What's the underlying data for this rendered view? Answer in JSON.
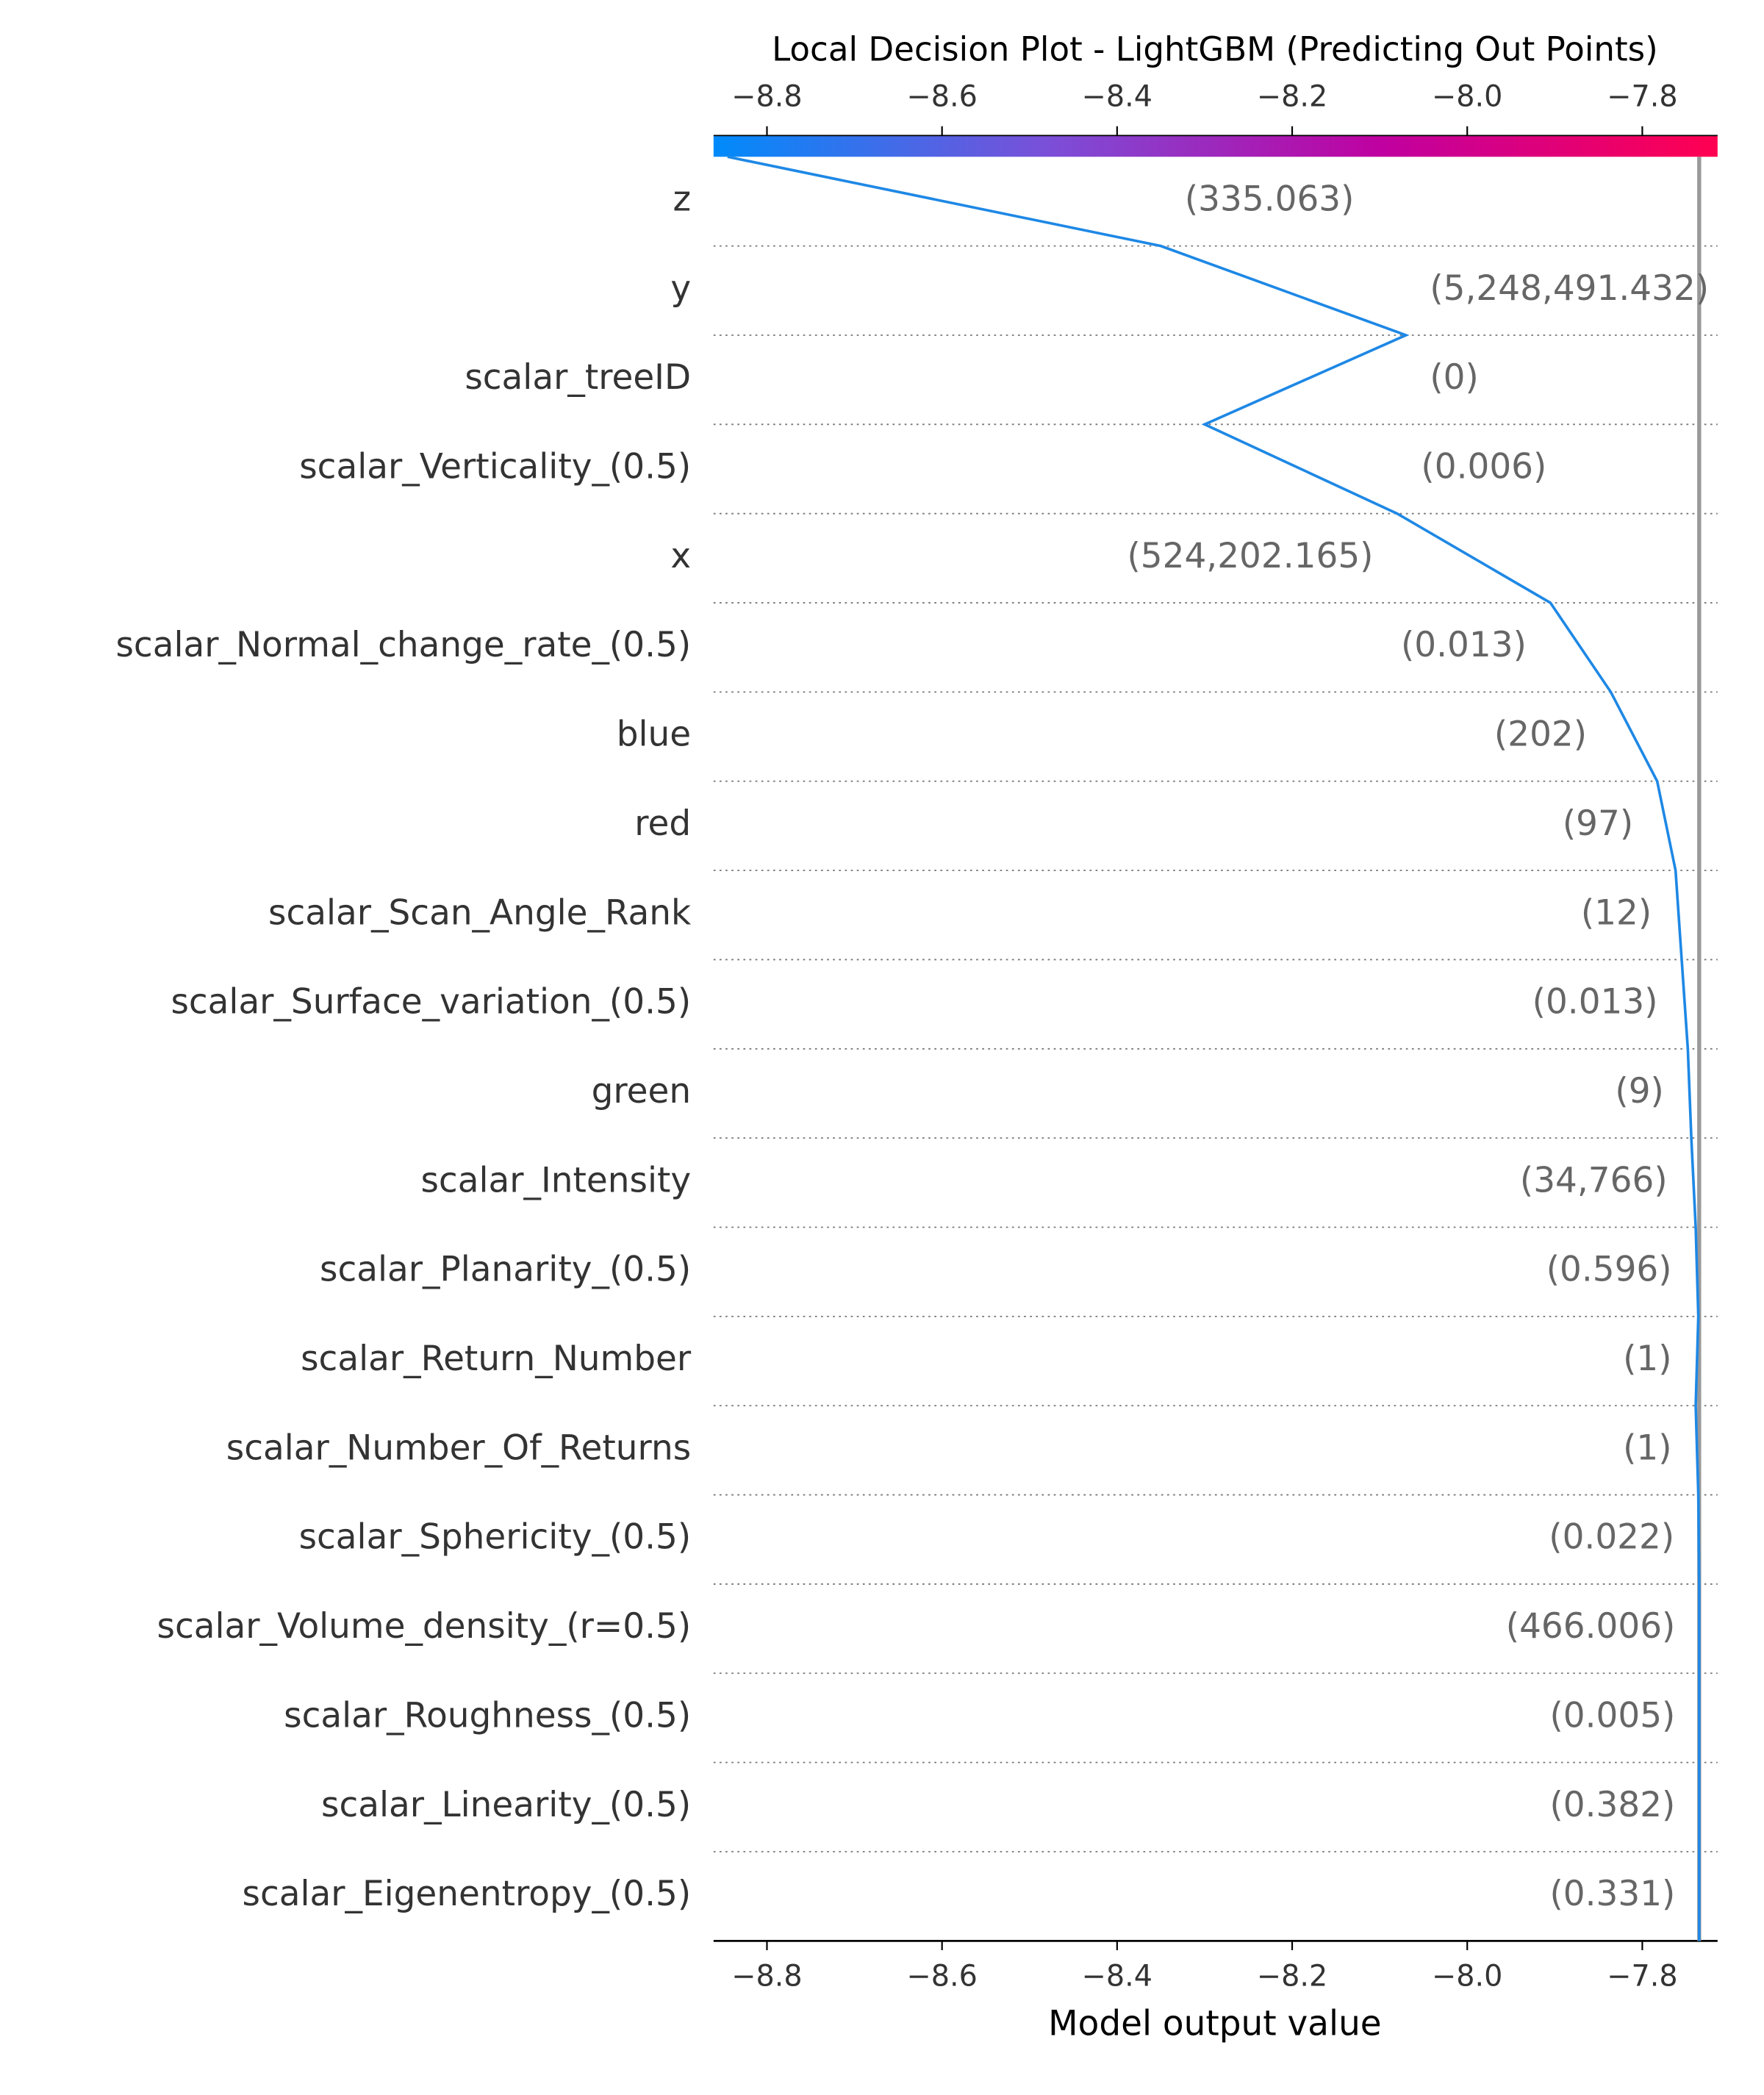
{
  "chart_data": {
    "type": "decision",
    "title": "Local Decision Plot - LightGBM (Predicting Out Points)",
    "x_label": "Model output value",
    "features": [
      "z",
      "y",
      "scalar_treeID",
      "scalar_Verticality_(0.5)",
      "x",
      "scalar_Normal_change_rate_(0.5)",
      "blue",
      "red",
      "scalar_Scan_Angle_Rank",
      "scalar_Surface_variation_(0.5)",
      "green",
      "scalar_Intensity",
      "scalar_Planarity_(0.5)",
      "scalar_Return_Number",
      "scalar_Number_Of_Returns",
      "scalar_Sphericity_(0.5)",
      "scalar_Volume_density_(r=0.5)",
      "scalar_Roughness_(0.5)",
      "scalar_Linearity_(0.5)",
      "scalar_Eigenentropy_(0.5)"
    ],
    "feature_values": [
      "(335.063)",
      "(5,248,491.432)",
      "(0)",
      "(0.006)",
      "(524,202.165)",
      "(0.013)",
      "(202)",
      "(97)",
      "(12)",
      "(0.013)",
      "(9)",
      "(34,766)",
      "(0.596)",
      "(1)",
      "(1)",
      "(0.022)",
      "(466.006)",
      "(0.005)",
      "(0.382)",
      "(0.331)"
    ],
    "series": [
      {
        "name": "prediction",
        "color": "#1e88e5",
        "values": [
          -8.845,
          -8.35,
          -8.07,
          -8.3,
          -8.08,
          -7.905,
          -7.836,
          -7.783,
          -7.762,
          -7.755,
          -7.748,
          -7.744,
          -7.739,
          -7.736,
          -7.739,
          -7.736,
          -7.735,
          -7.735,
          -7.735,
          -7.735,
          -7.735
        ]
      }
    ],
    "base_value": -7.735,
    "base_color": "#999999",
    "colormap": [
      "#008bfb",
      "#7b4fd8",
      "#c000a0",
      "#ff0051"
    ],
    "xlim": [
      -8.861,
      -7.714
    ],
    "xticks": [
      {
        "value": -8.8,
        "label": "−8.8"
      },
      {
        "value": -8.6,
        "label": "−8.6"
      },
      {
        "value": -8.4,
        "label": "−8.4"
      },
      {
        "value": -8.2,
        "label": "−8.2"
      },
      {
        "value": -8.0,
        "label": "−8.0"
      },
      {
        "value": -7.8,
        "label": "−7.8"
      }
    ]
  }
}
